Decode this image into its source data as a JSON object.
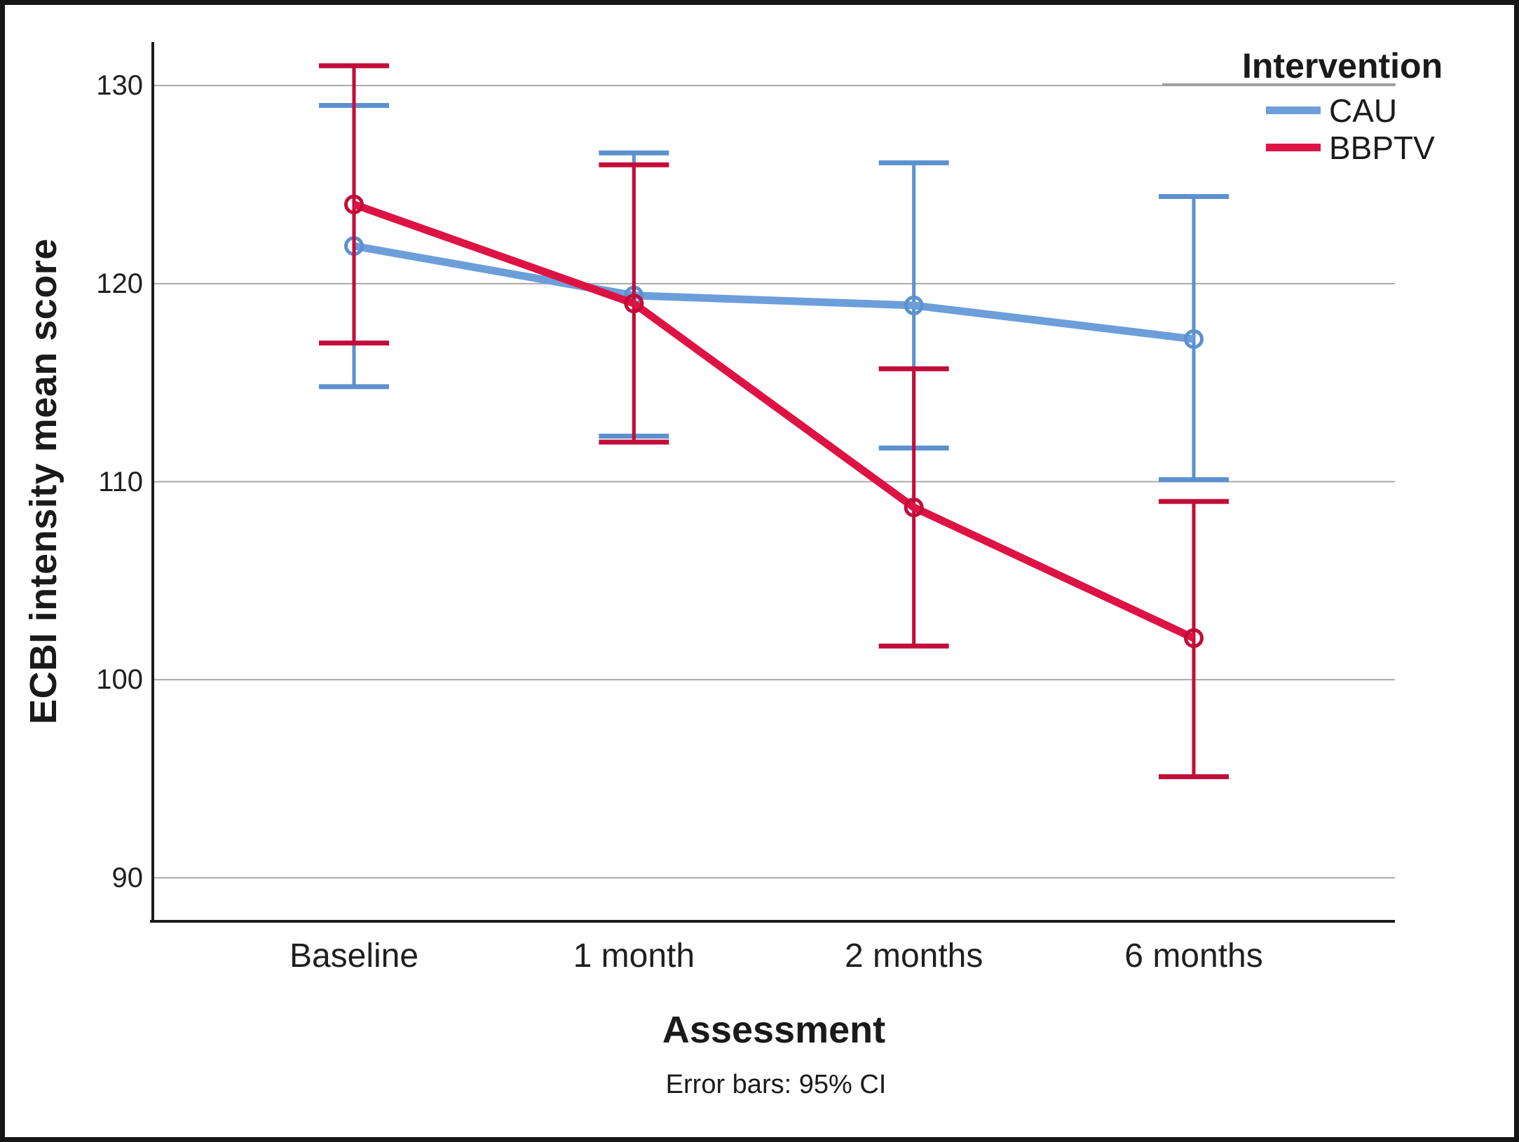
{
  "chart_data": {
    "type": "line",
    "title": "",
    "categories": [
      "Baseline",
      "1 month",
      "2 months",
      "6 months"
    ],
    "series": [
      {
        "name": "CAU",
        "line_color": "#6C9EDA",
        "errorbar_color": "#5C91D0",
        "means": [
          121.9,
          119.4,
          118.9,
          117.2
        ],
        "ci_low": [
          114.8,
          112.3,
          111.7,
          110.1
        ],
        "ci_high": [
          129.0,
          126.6,
          126.1,
          124.4
        ]
      },
      {
        "name": "BBPTV",
        "line_color": "#DE1345",
        "errorbar_color": "#C20D39",
        "means": [
          124.0,
          119.0,
          108.7,
          102.1
        ],
        "ci_low": [
          117.0,
          112.0,
          101.7,
          95.1
        ],
        "ci_high": [
          131.0,
          126.0,
          115.7,
          109.0
        ]
      }
    ],
    "xlabel": "Assessment",
    "ylabel": "ECBI intensity mean score",
    "yticks": [
      90,
      100,
      110,
      120,
      130
    ],
    "ylim": [
      87.8,
      132.2
    ],
    "grid": true,
    "gridline_color": "#a8a8a8",
    "axis_color": "#1c1c1c",
    "marker": "open-circle",
    "legend_title": "Intervention",
    "legend_position": "top-right",
    "footnote": "Error bars: 95% CI"
  }
}
